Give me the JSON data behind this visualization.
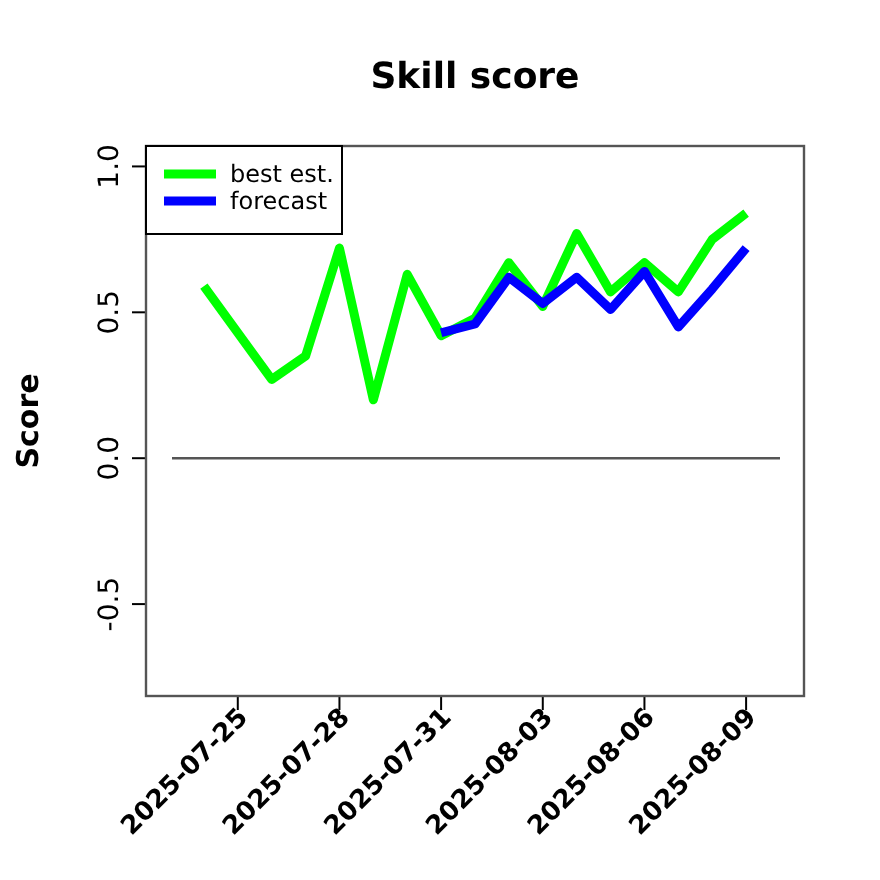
{
  "chart_data": {
    "type": "line",
    "title": "Skill score",
    "ylabel": "Score",
    "xlim": [
      "2025-07-22T07:00",
      "2025-08-10T17:00"
    ],
    "xticks": [
      {
        "value": "2025-07-25",
        "label": "2025-07-25"
      },
      {
        "value": "2025-07-28",
        "label": "2025-07-28"
      },
      {
        "value": "2025-07-31",
        "label": "2025-07-31"
      },
      {
        "value": "2025-08-03",
        "label": "2025-08-03"
      },
      {
        "value": "2025-08-06",
        "label": "2025-08-06"
      },
      {
        "value": "2025-08-09",
        "label": "2025-08-09"
      }
    ],
    "ylim": [
      -0.815,
      1.07
    ],
    "yticks": [
      {
        "value": -0.5,
        "label": "-0.5"
      },
      {
        "value": 0,
        "label": "0.0"
      },
      0.5,
      {
        "value": 1,
        "label": "1.0"
      }
    ],
    "series": [
      {
        "name": "best est.",
        "color": "#00ff00",
        "x": [
          "2025-07-24",
          "2025-07-26",
          "2025-07-27",
          "2025-07-28",
          "2025-07-29",
          "2025-07-30",
          "2025-07-31",
          "2025-08-01",
          "2025-08-02",
          "2025-08-03",
          "2025-08-04",
          "2025-08-05",
          "2025-08-06",
          "2025-08-07",
          "2025-08-08",
          "2025-08-09"
        ],
        "values": [
          0.59,
          0.27,
          0.35,
          0.72,
          0.2,
          0.63,
          0.42,
          0.48,
          0.67,
          0.52,
          0.77,
          0.57,
          0.67,
          0.57,
          0.75,
          0.84
        ]
      },
      {
        "name": "forecast",
        "color": "#0000ff",
        "x": [
          "2025-07-31",
          "2025-08-01",
          "2025-08-02",
          "2025-08-03",
          "2025-08-04",
          "2025-08-05",
          "2025-08-06",
          "2025-08-07",
          "2025-08-08",
          "2025-08-09"
        ],
        "values": [
          0.43,
          0.46,
          0.62,
          0.53,
          0.62,
          0.51,
          0.64,
          0.45,
          0.58,
          0.72
        ]
      }
    ],
    "ref_lines": [
      {
        "axis": "y",
        "value": 0,
        "color": "#555555"
      }
    ],
    "legend": "top left",
    "grid": false,
    "marker": "none",
    "line_style": "solid"
  }
}
